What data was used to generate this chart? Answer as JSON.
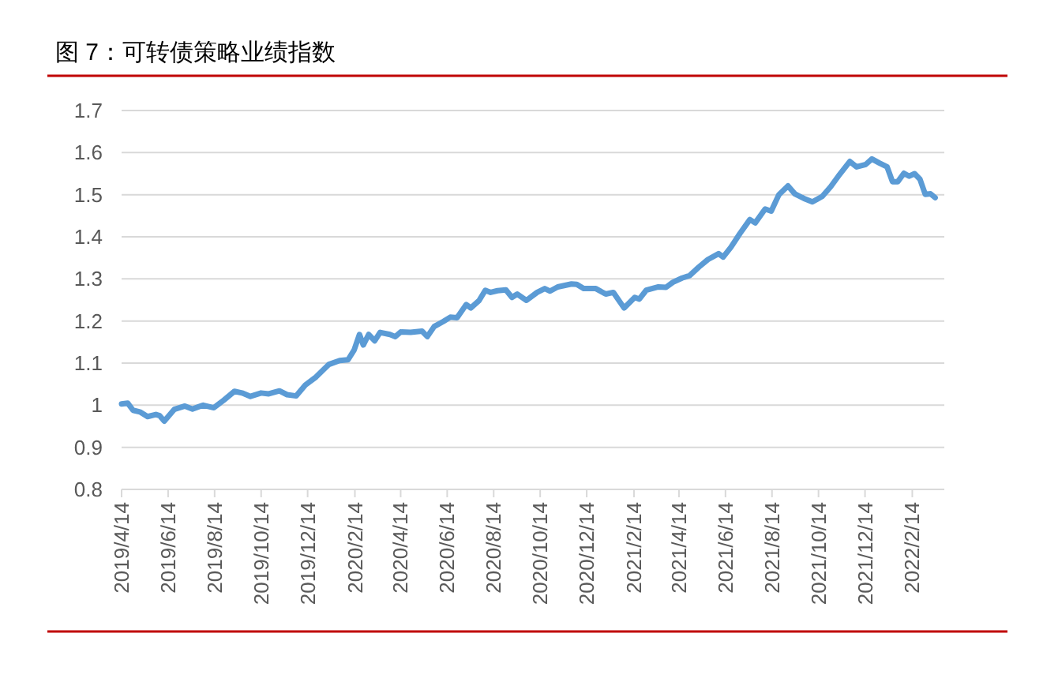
{
  "chart_data": {
    "type": "line",
    "title": "图 7：可转债策略业绩指数",
    "grid": "y",
    "xlim": [
      "2019-04-14",
      "2022-03-28"
    ],
    "ylim": [
      0.8,
      1.7
    ],
    "yticks": [
      0.8,
      0.9,
      1,
      1.1,
      1.2,
      1.3,
      1.4,
      1.5,
      1.6,
      1.7
    ],
    "xticks": [
      {
        "value": "2019-04-14",
        "label": "2019/4/14"
      },
      {
        "value": "2019-06-14",
        "label": "2019/6/14"
      },
      {
        "value": "2019-08-14",
        "label": "2019/8/14"
      },
      {
        "value": "2019-10-14",
        "label": "2019/10/14"
      },
      {
        "value": "2019-12-14",
        "label": "2019/12/14"
      },
      {
        "value": "2020-02-14",
        "label": "2020/2/14"
      },
      {
        "value": "2020-04-14",
        "label": "2020/4/14"
      },
      {
        "value": "2020-06-14",
        "label": "2020/6/14"
      },
      {
        "value": "2020-08-14",
        "label": "2020/8/14"
      },
      {
        "value": "2020-10-14",
        "label": "2020/10/14"
      },
      {
        "value": "2020-12-14",
        "label": "2020/12/14"
      },
      {
        "value": "2021-02-14",
        "label": "2021/2/14"
      },
      {
        "value": "2021-04-14",
        "label": "2021/4/14"
      },
      {
        "value": "2021-06-14",
        "label": "2021/6/14"
      },
      {
        "value": "2021-08-14",
        "label": "2021/8/14"
      },
      {
        "value": "2021-10-14",
        "label": "2021/10/14"
      },
      {
        "value": "2021-12-14",
        "label": "2021/12/14"
      },
      {
        "value": "2022-02-14",
        "label": "2022/2/14"
      }
    ],
    "x": [
      "2019-04-14",
      "2019-04-22",
      "2019-04-29",
      "2019-05-08",
      "2019-05-18",
      "2019-05-29",
      "2019-06-03",
      "2019-06-09",
      "2019-06-22",
      "2019-07-06",
      "2019-07-16",
      "2019-07-30",
      "2019-08-13",
      "2019-08-26",
      "2019-09-09",
      "2019-09-19",
      "2019-09-30",
      "2019-10-14",
      "2019-10-24",
      "2019-11-07",
      "2019-11-17",
      "2019-11-29",
      "2019-12-11",
      "2019-12-25",
      "2020-01-11",
      "2020-01-25",
      "2020-02-05",
      "2020-02-13",
      "2020-02-20",
      "2020-02-25",
      "2020-03-03",
      "2020-03-11",
      "2020-03-18",
      "2020-03-31",
      "2020-04-07",
      "2020-04-14",
      "2020-04-27",
      "2020-05-12",
      "2020-05-19",
      "2020-05-28",
      "2020-06-09",
      "2020-06-18",
      "2020-06-27",
      "2020-07-09",
      "2020-07-15",
      "2020-07-26",
      "2020-08-03",
      "2020-08-10",
      "2020-08-19",
      "2020-08-30",
      "2020-09-07",
      "2020-09-14",
      "2020-09-26",
      "2020-10-10",
      "2020-10-20",
      "2020-10-27",
      "2020-11-06",
      "2020-11-24",
      "2020-12-01",
      "2020-12-10",
      "2020-12-26",
      "2021-01-08",
      "2021-01-18",
      "2021-02-01",
      "2021-02-15",
      "2021-02-21",
      "2021-03-02",
      "2021-03-18",
      "2021-03-28",
      "2021-04-06",
      "2021-04-18",
      "2021-04-28",
      "2021-05-10",
      "2021-05-22",
      "2021-06-05",
      "2021-06-11",
      "2021-06-21",
      "2021-07-03",
      "2021-07-16",
      "2021-07-23",
      "2021-08-05",
      "2021-08-13",
      "2021-08-23",
      "2021-09-04",
      "2021-09-13",
      "2021-09-25",
      "2021-10-06",
      "2021-10-19",
      "2021-10-30",
      "2021-11-09",
      "2021-11-24",
      "2021-12-03",
      "2021-12-15",
      "2021-12-23",
      "2022-01-02",
      "2022-01-12",
      "2022-01-19",
      "2022-01-26",
      "2022-02-03",
      "2022-02-10",
      "2022-02-17",
      "2022-02-24",
      "2022-03-03",
      "2022-03-10",
      "2022-03-16"
    ],
    "series": [
      {
        "color": "#5b9bd5",
        "values": [
          1.003,
          1.005,
          0.988,
          0.984,
          0.973,
          0.978,
          0.975,
          0.962,
          0.99,
          0.998,
          0.991,
          1.0,
          0.994,
          1.012,
          1.033,
          1.029,
          1.021,
          1.029,
          1.027,
          1.034,
          1.025,
          1.022,
          1.048,
          1.067,
          1.097,
          1.106,
          1.108,
          1.131,
          1.168,
          1.143,
          1.168,
          1.153,
          1.173,
          1.168,
          1.163,
          1.174,
          1.173,
          1.176,
          1.163,
          1.187,
          1.199,
          1.209,
          1.208,
          1.239,
          1.231,
          1.249,
          1.273,
          1.268,
          1.272,
          1.274,
          1.256,
          1.264,
          1.249,
          1.268,
          1.277,
          1.271,
          1.281,
          1.288,
          1.287,
          1.277,
          1.277,
          1.264,
          1.268,
          1.231,
          1.256,
          1.252,
          1.273,
          1.281,
          1.28,
          1.292,
          1.302,
          1.308,
          1.328,
          1.346,
          1.36,
          1.352,
          1.375,
          1.408,
          1.441,
          1.433,
          1.466,
          1.461,
          1.5,
          1.521,
          1.502,
          1.491,
          1.483,
          1.496,
          1.519,
          1.544,
          1.579,
          1.566,
          1.572,
          1.585,
          1.575,
          1.566,
          1.531,
          1.531,
          1.551,
          1.544,
          1.55,
          1.537,
          1.501,
          1.502,
          1.493
        ]
      }
    ]
  }
}
